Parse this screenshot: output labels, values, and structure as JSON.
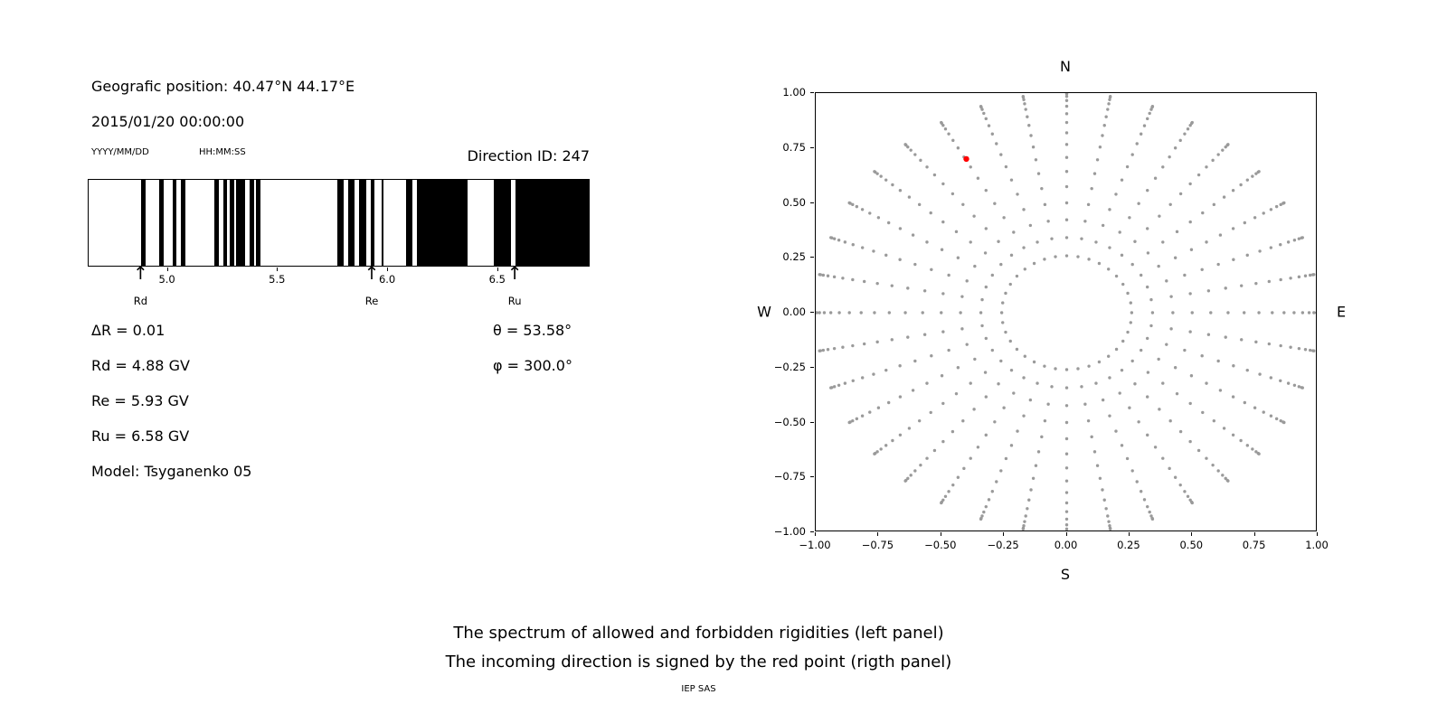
{
  "header": {
    "position": "Geografic position: 40.47°N 44.17°E",
    "datetime": "2015/01/20 00:00:00",
    "date_format": "YYYY/MM/DD",
    "time_format": "HH:MM:SS",
    "direction_id": "Direction ID: 247"
  },
  "parameters": {
    "delta_r": "ΔR = 0.01",
    "theta": "θ = 53.58°",
    "rd": "Rd = 4.88 GV",
    "phi": "φ = 300.0°",
    "re": "Re = 5.93 GV",
    "ru": "Ru = 6.58 GV",
    "model": "Model: Tsyganenko 05"
  },
  "direction_map": {
    "north": "N",
    "south": "S",
    "west": "W",
    "east": "E"
  },
  "captions": {
    "line1": "The spectrum of allowed and forbidden rigidities (left panel)",
    "line2": "The incoming direction is signed by the red point (rigth panel)",
    "credit": "IEP SAS"
  },
  "colors": {
    "band": "#000000",
    "grid_dot": "#9a9a9a",
    "red_dot": "#ff0000",
    "axis": "#000000"
  },
  "chart_data": [
    {
      "type": "bar",
      "subtype": "rigidity_penumbra_barcode",
      "title": "",
      "xlabel": "",
      "ylabel": "",
      "x_range": [
        4.64,
        6.92
      ],
      "x_ticks": [
        5.0,
        5.5,
        6.0,
        6.5
      ],
      "x_tick_labels": [
        "5.0",
        "5.5",
        "6.0",
        "6.5"
      ],
      "allowed_bands_gv": [
        [
          4.88,
          4.9
        ],
        [
          4.96,
          4.98
        ],
        [
          5.02,
          5.04
        ],
        [
          5.06,
          5.08
        ],
        [
          5.21,
          5.23
        ],
        [
          5.25,
          5.27
        ],
        [
          5.28,
          5.3
        ],
        [
          5.31,
          5.35
        ],
        [
          5.37,
          5.39
        ],
        [
          5.4,
          5.42
        ],
        [
          5.77,
          5.8
        ],
        [
          5.82,
          5.85
        ],
        [
          5.87,
          5.9
        ],
        [
          5.92,
          5.94
        ],
        [
          5.97,
          5.98
        ],
        [
          6.08,
          6.11
        ],
        [
          6.13,
          6.36
        ],
        [
          6.48,
          6.56
        ],
        [
          6.58,
          6.92
        ]
      ],
      "markers": [
        {
          "label": "Rd",
          "x": 4.88
        },
        {
          "label": "Re",
          "x": 5.93
        },
        {
          "label": "Ru",
          "x": 6.58
        }
      ]
    },
    {
      "type": "scatter",
      "title": "",
      "xlabel": "S",
      "ylabel_left": "W",
      "ylabel_right": "E",
      "top_label": "N",
      "xlim": [
        -1.0,
        1.0
      ],
      "ylim": [
        -1.0,
        1.0
      ],
      "x_ticks": [
        -1.0,
        -0.75,
        -0.5,
        -0.25,
        0.0,
        0.25,
        0.5,
        0.75,
        1.0
      ],
      "x_tick_labels": [
        "−1.00",
        "−0.75",
        "−0.50",
        "−0.25",
        "0.00",
        "0.25",
        "0.50",
        "0.75",
        "1.00"
      ],
      "y_ticks": [
        -1.0,
        -0.75,
        -0.5,
        -0.25,
        0.0,
        0.25,
        0.5,
        0.75,
        1.0
      ],
      "y_tick_labels": [
        "−1.00",
        "−0.75",
        "−0.50",
        "−0.25",
        "0.00",
        "0.25",
        "0.50",
        "0.75",
        "1.00"
      ],
      "grid": {
        "description": "Radial grid of gray dots: 36 azimuth spokes every 10°, dots at radius = sin(zenith) for zenith 15°..90° step 5°",
        "azimuth_start_deg": 0,
        "azimuth_step_deg": 10,
        "azimuth_count": 36,
        "zenith_deg": [
          15,
          20,
          25,
          30,
          35,
          40,
          45,
          50,
          55,
          60,
          65,
          70,
          75,
          80,
          85,
          90
        ],
        "radii": [
          0.259,
          0.342,
          0.423,
          0.5,
          0.574,
          0.643,
          0.707,
          0.766,
          0.819,
          0.866,
          0.906,
          0.94,
          0.966,
          0.985,
          0.996,
          1.0
        ]
      },
      "red_point": {
        "x": -0.4,
        "y": 0.7
      }
    }
  ]
}
